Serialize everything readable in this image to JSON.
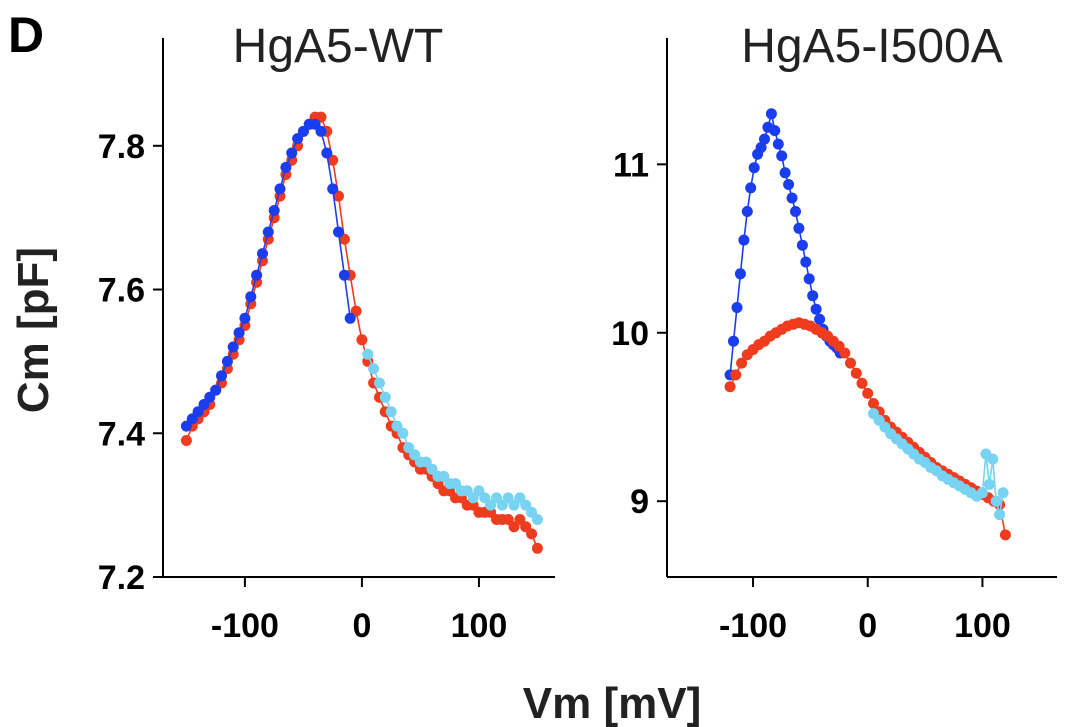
{
  "figure": {
    "panel_letter": "D",
    "xlabel": "Vm [mV]",
    "ylabel": "Cm [pF]"
  },
  "colors": {
    "red": "#f03c1e",
    "blue": "#1a3df0",
    "lightblue": "#78d2f2"
  },
  "chart_data": [
    {
      "type": "scatter",
      "title": "HgA5-WT",
      "xlim": [
        -170,
        165
      ],
      "ylim": [
        7.2,
        7.95
      ],
      "xticks": [
        -100,
        0,
        100
      ],
      "xtick_labels": [
        "-100",
        "0",
        "100"
      ],
      "yticks": [
        7.2,
        7.4,
        7.6,
        7.8
      ],
      "ytick_labels": [
        "7.2",
        "7.4",
        "7.6",
        "7.8"
      ],
      "series": [
        {
          "color": "red",
          "x": [
            -150,
            -145,
            -140,
            -135,
            -130,
            -125,
            -120,
            -115,
            -110,
            -105,
            -100,
            -95,
            -90,
            -85,
            -80,
            -75,
            -70,
            -65,
            -60,
            -55,
            -50,
            -45,
            -40,
            -35,
            -30,
            -25,
            -20,
            -15,
            -10,
            -5,
            0,
            5,
            10,
            15,
            20,
            25,
            30,
            35,
            40,
            45,
            50,
            55,
            60,
            65,
            70,
            75,
            80,
            85,
            90,
            95,
            100,
            105,
            110,
            115,
            120,
            125,
            130,
            135,
            140,
            145,
            150
          ],
          "y": [
            7.39,
            7.41,
            7.42,
            7.43,
            7.44,
            7.46,
            7.47,
            7.49,
            7.51,
            7.53,
            7.55,
            7.58,
            7.61,
            7.64,
            7.67,
            7.7,
            7.73,
            7.76,
            7.78,
            7.8,
            7.82,
            7.83,
            7.84,
            7.84,
            7.82,
            7.78,
            7.73,
            7.67,
            7.62,
            7.57,
            7.53,
            7.5,
            7.47,
            7.45,
            7.43,
            7.41,
            7.4,
            7.38,
            7.37,
            7.36,
            7.35,
            7.35,
            7.34,
            7.33,
            7.32,
            7.32,
            7.31,
            7.31,
            7.3,
            7.3,
            7.29,
            7.29,
            7.29,
            7.28,
            7.28,
            7.28,
            7.27,
            7.28,
            7.27,
            7.26,
            7.24
          ]
        },
        {
          "color": "blue",
          "x": [
            -150,
            -145,
            -140,
            -135,
            -130,
            -125,
            -120,
            -115,
            -110,
            -105,
            -100,
            -95,
            -90,
            -85,
            -80,
            -75,
            -70,
            -65,
            -60,
            -55,
            -50,
            -45,
            -40,
            -35,
            -30,
            -25,
            -20,
            -15,
            -10
          ],
          "y": [
            7.41,
            7.42,
            7.43,
            7.44,
            7.45,
            7.46,
            7.48,
            7.5,
            7.52,
            7.54,
            7.56,
            7.59,
            7.62,
            7.65,
            7.68,
            7.71,
            7.74,
            7.77,
            7.79,
            7.81,
            7.82,
            7.83,
            7.83,
            7.82,
            7.79,
            7.74,
            7.68,
            7.62,
            7.56
          ]
        },
        {
          "color": "lightblue",
          "x": [
            5,
            10,
            15,
            20,
            25,
            30,
            35,
            40,
            45,
            50,
            55,
            60,
            65,
            70,
            75,
            80,
            85,
            90,
            95,
            100,
            105,
            110,
            115,
            120,
            125,
            130,
            135,
            140,
            145,
            150
          ],
          "y": [
            7.51,
            7.49,
            7.47,
            7.45,
            7.43,
            7.41,
            7.4,
            7.38,
            7.37,
            7.36,
            7.36,
            7.35,
            7.34,
            7.34,
            7.33,
            7.33,
            7.32,
            7.32,
            7.31,
            7.32,
            7.31,
            7.3,
            7.31,
            7.3,
            7.31,
            7.3,
            7.31,
            7.3,
            7.29,
            7.28
          ]
        }
      ]
    },
    {
      "type": "scatter",
      "title": "HgA5-I500A",
      "xlim": [
        -175,
        165
      ],
      "ylim": [
        8.55,
        11.75
      ],
      "xticks": [
        -100,
        0,
        100
      ],
      "xtick_labels": [
        "-100",
        "0",
        "100"
      ],
      "yticks": [
        9,
        10,
        11
      ],
      "ytick_labels": [
        "9",
        "10",
        "11"
      ],
      "series": [
        {
          "color": "blue",
          "x": [
            -120,
            -117,
            -114,
            -111,
            -108,
            -105,
            -102,
            -99,
            -96,
            -93,
            -90,
            -87,
            -84,
            -81,
            -78,
            -75,
            -72,
            -69,
            -66,
            -63,
            -60,
            -57,
            -54,
            -51,
            -48,
            -45,
            -42,
            -39,
            -36,
            -33,
            -30,
            -27,
            -24
          ],
          "y": [
            9.75,
            9.95,
            10.15,
            10.35,
            10.55,
            10.72,
            10.86,
            10.98,
            11.06,
            11.1,
            11.15,
            11.22,
            11.3,
            11.2,
            11.12,
            11.05,
            10.95,
            10.88,
            10.8,
            10.72,
            10.62,
            10.52,
            10.42,
            10.32,
            10.22,
            10.14,
            10.08,
            10.02,
            9.98,
            9.95,
            9.93,
            9.91,
            9.88
          ]
        },
        {
          "color": "red",
          "x": [
            -120,
            -115,
            -110,
            -105,
            -100,
            -95,
            -90,
            -85,
            -80,
            -75,
            -70,
            -65,
            -60,
            -55,
            -50,
            -45,
            -40,
            -35,
            -30,
            -25,
            -20,
            -15,
            -10,
            -5,
            0,
            5,
            10,
            15,
            20,
            25,
            30,
            35,
            40,
            45,
            50,
            55,
            60,
            65,
            70,
            75,
            80,
            85,
            90,
            95,
            100,
            105,
            110,
            115,
            120
          ],
          "y": [
            9.68,
            9.75,
            9.82,
            9.87,
            9.9,
            9.93,
            9.95,
            9.98,
            10.0,
            10.02,
            10.04,
            10.05,
            10.06,
            10.05,
            10.04,
            10.02,
            10.0,
            9.98,
            9.95,
            9.92,
            9.88,
            9.82,
            9.76,
            9.7,
            9.64,
            9.58,
            9.53,
            9.48,
            9.44,
            9.41,
            9.38,
            9.35,
            9.32,
            9.29,
            9.26,
            9.23,
            9.2,
            9.18,
            9.16,
            9.14,
            9.12,
            9.1,
            9.08,
            9.06,
            9.04,
            9.02,
            9.0,
            8.98,
            8.8
          ]
        },
        {
          "color": "lightblue",
          "x": [
            5,
            10,
            15,
            20,
            25,
            30,
            35,
            40,
            45,
            50,
            55,
            60,
            65,
            70,
            75,
            80,
            85,
            90,
            95,
            100,
            103,
            106,
            109,
            112,
            115,
            118
          ],
          "y": [
            9.52,
            9.48,
            9.44,
            9.4,
            9.37,
            9.34,
            9.31,
            9.28,
            9.25,
            9.23,
            9.2,
            9.18,
            9.15,
            9.13,
            9.11,
            9.09,
            9.07,
            9.05,
            9.03,
            9.05,
            9.28,
            9.1,
            9.25,
            9.0,
            8.92,
            9.05
          ]
        }
      ]
    }
  ]
}
